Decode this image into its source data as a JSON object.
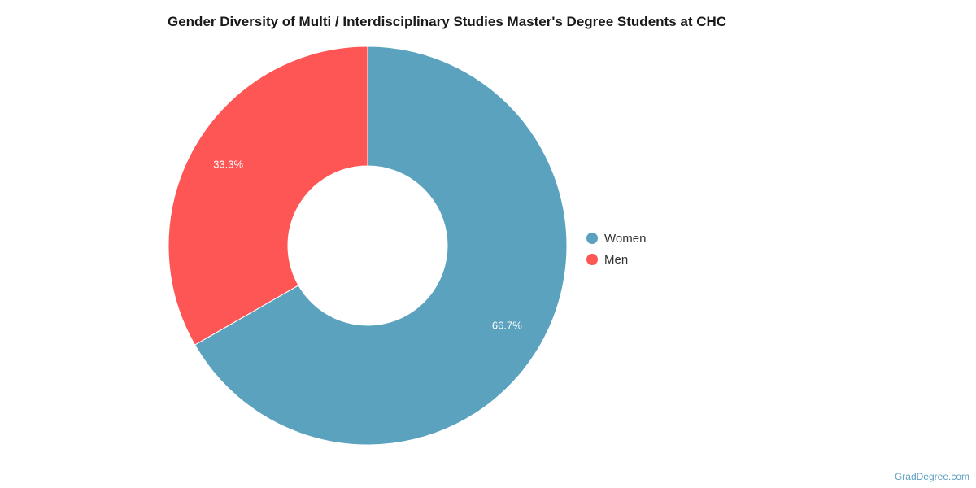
{
  "chart_data": {
    "type": "pie",
    "title": "Gender Diversity of Multi / Interdisciplinary Studies Master's Degree Students at CHC",
    "variant": "donut",
    "slices": [
      {
        "name": "Women",
        "value": 66.7,
        "label": "66.7%",
        "color": "#5ba2be"
      },
      {
        "name": "Men",
        "value": 33.3,
        "label": "33.3%",
        "color": "#fe5555"
      }
    ],
    "legend": {
      "placement": "right",
      "entries": [
        "Women",
        "Men"
      ]
    }
  },
  "watermark": "GradDegree.com"
}
